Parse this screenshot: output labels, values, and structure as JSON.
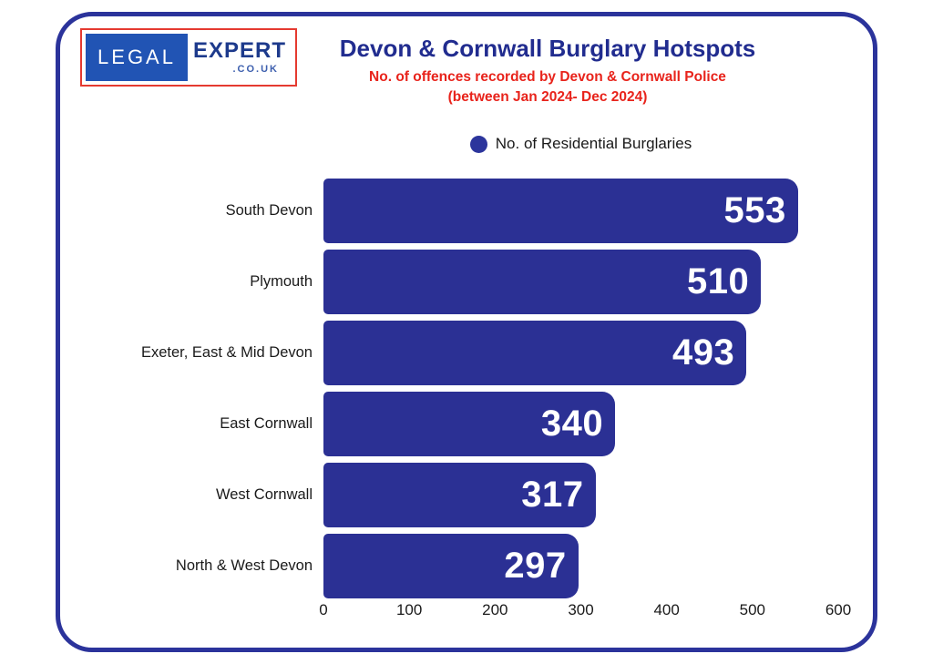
{
  "logo": {
    "legal": "LEGAL",
    "expert": "EXPERT",
    "couk": ".CO.UK"
  },
  "header": {
    "title": "Devon & Cornwall Burglary Hotspots",
    "subtitle_line1": "No. of offences recorded by Devon & Cornwall Police",
    "subtitle_line2": "(between Jan 2024- Dec 2024)"
  },
  "legend": {
    "label": "No. of Residential Burglaries"
  },
  "chart_data": {
    "type": "bar",
    "orientation": "horizontal",
    "title": "Devon & Cornwall Burglary Hotspots",
    "subtitle": "No. of offences recorded by Devon & Cornwall Police (between Jan 2024- Dec 2024)",
    "series_name": "No. of Residential Burglaries",
    "categories": [
      "South Devon",
      "Plymouth",
      "Exeter, East & Mid Devon",
      "East Cornwall",
      "West Cornwall",
      "North & West Devon"
    ],
    "values": [
      553,
      510,
      493,
      340,
      317,
      297
    ],
    "x_ticks": [
      "0",
      "100",
      "200",
      "300",
      "400",
      "500",
      "600"
    ],
    "xlim": [
      0,
      600
    ],
    "grid": false,
    "legend_position": "top-center",
    "bar_color": "#2b3094",
    "value_label_color": "#ffffff"
  },
  "colors": {
    "bar_blue": "#2b3094",
    "title_navy": "#212c8f",
    "subtitle_red": "#e8231b",
    "frame_border": "#2b339b",
    "logo_border_red": "#e53a30",
    "logo_box_blue": "#2154b4",
    "logo_expert_navy": "#1d3a8c",
    "logo_couk_blue": "#3d5fae",
    "background": "#ffffff"
  }
}
